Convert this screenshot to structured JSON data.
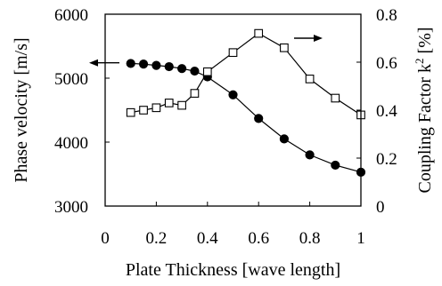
{
  "chart_data": {
    "type": "line",
    "xlabel": "Plate Thickness [wave length]",
    "xlim": [
      0,
      1
    ],
    "xticks": [
      "0",
      "0.2",
      "0.4",
      "0.6",
      "0.8",
      "1"
    ],
    "y_left": {
      "label": "Phase velocity [m/s]",
      "lim": [
        3000,
        6000
      ],
      "ticks": [
        "3000",
        "4000",
        "5000",
        "6000"
      ]
    },
    "y_right": {
      "label_main": "Coupling Factor k",
      "label_sup": "2",
      "label_tail": " [%]",
      "lim": [
        0,
        0.8
      ],
      "ticks": [
        "0",
        "0.2",
        "0.4",
        "0.6",
        "0.8"
      ]
    },
    "grid": false,
    "series": [
      {
        "axis": "left",
        "marker": "filled-circle",
        "color": "#000000",
        "x": [
          0.1,
          0.15,
          0.2,
          0.25,
          0.3,
          0.35,
          0.4,
          0.5,
          0.6,
          0.7,
          0.8,
          0.9,
          1.0
        ],
        "y": [
          5230,
          5220,
          5200,
          5180,
          5150,
          5110,
          5020,
          4740,
          4370,
          4050,
          3800,
          3640,
          3530
        ]
      },
      {
        "axis": "right",
        "marker": "open-square",
        "color": "#000000",
        "x": [
          0.1,
          0.15,
          0.2,
          0.25,
          0.3,
          0.35,
          0.4,
          0.5,
          0.6,
          0.7,
          0.8,
          0.9,
          1.0
        ],
        "y": [
          0.39,
          0.4,
          0.41,
          0.43,
          0.42,
          0.47,
          0.56,
          0.64,
          0.72,
          0.66,
          0.53,
          0.45,
          0.38
        ]
      }
    ],
    "annotations": [
      {
        "type": "arrow",
        "direction": "left",
        "target_axis": "left"
      },
      {
        "type": "arrow",
        "direction": "right",
        "target_axis": "right"
      }
    ]
  }
}
